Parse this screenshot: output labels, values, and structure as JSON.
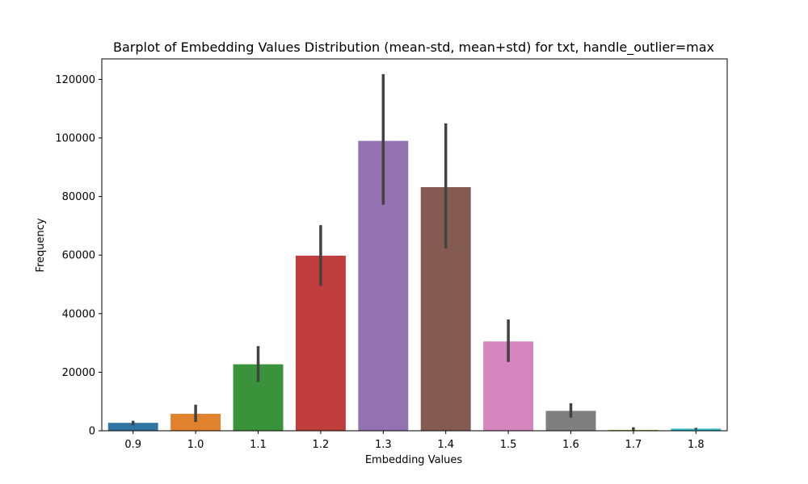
{
  "chart_data": {
    "type": "bar",
    "title": "Barplot of Embedding Values Distribution (mean-std, mean+std) for txt, handle_outlier=max",
    "xlabel": "Embedding Values",
    "ylabel": "Frequency",
    "categories": [
      "0.9",
      "1.0",
      "1.1",
      "1.2",
      "1.3",
      "1.4",
      "1.5",
      "1.6",
      "1.7",
      "1.8"
    ],
    "values": [
      2700,
      5800,
      22700,
      59800,
      99000,
      83200,
      30500,
      6800,
      300,
      700
    ],
    "error_low": [
      1900,
      3000,
      16700,
      49500,
      77200,
      62200,
      23500,
      4500,
      0,
      400
    ],
    "error_high": [
      3400,
      8900,
      28900,
      70200,
      121800,
      105000,
      38000,
      9400,
      1200,
      1000
    ],
    "colors": [
      "#3274a1",
      "#e1812c",
      "#3a923a",
      "#c03d3e",
      "#9372b2",
      "#845b53",
      "#d684bd",
      "#7f7f7f",
      "#a9aa35",
      "#2eb3c2"
    ],
    "error_color": "#424242",
    "ylim": [
      0,
      127000
    ],
    "yticks": [
      0,
      20000,
      40000,
      60000,
      80000,
      100000,
      120000
    ],
    "ytick_labels": [
      "0",
      "20000",
      "40000",
      "60000",
      "80000",
      "100000",
      "120000"
    ],
    "grid": false,
    "legend": false
  }
}
